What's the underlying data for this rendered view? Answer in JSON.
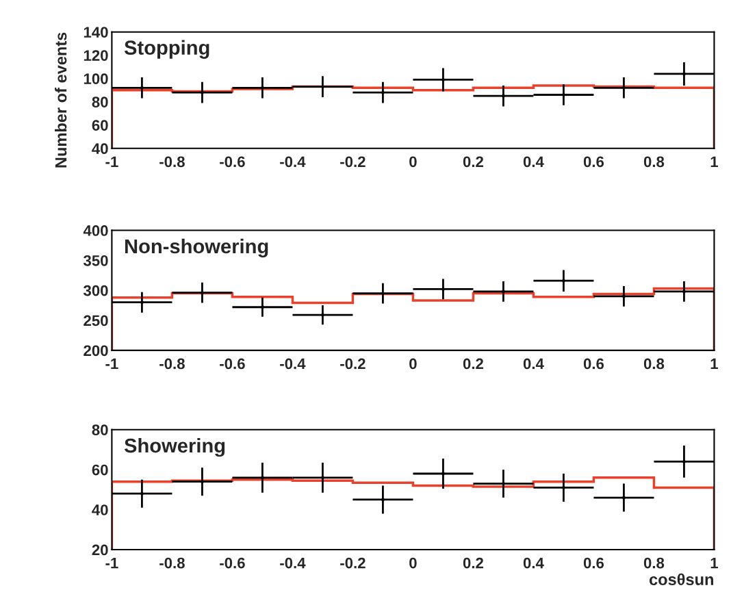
{
  "chart_data": [
    {
      "type": "histogram",
      "title": "Stopping",
      "ylabel": "Number of events",
      "bins": [
        -1,
        -0.8,
        -0.6,
        -0.4,
        -0.2,
        0,
        0.2,
        0.4,
        0.6,
        0.8,
        1
      ],
      "xlim": [
        -1,
        1
      ],
      "ylim": [
        40,
        140
      ],
      "xticks": [
        -1,
        -0.8,
        -0.6,
        -0.4,
        -0.2,
        0,
        0.2,
        0.4,
        0.6,
        0.8,
        1
      ],
      "yticks": [
        40,
        60,
        80,
        100,
        120,
        140
      ],
      "grid": false,
      "legend": false,
      "series": [
        {
          "color": "#e8412c",
          "values": [
            90,
            89,
            91,
            93,
            92,
            90,
            92,
            94,
            93,
            92
          ]
        },
        {
          "type": "scatter",
          "color": "#000000",
          "x": [
            -0.9,
            -0.7,
            -0.5,
            -0.3,
            -0.1,
            0.1,
            0.3,
            0.5,
            0.7,
            0.9
          ],
          "values": [
            92,
            88,
            92,
            93,
            88,
            99,
            85,
            86,
            92,
            104
          ],
          "errors": [
            9,
            9,
            9,
            9,
            9,
            10,
            9,
            9,
            9,
            10
          ],
          "xerrors": [
            0.1,
            0.1,
            0.1,
            0.1,
            0.1,
            0.1,
            0.1,
            0.1,
            0.1,
            0.1
          ]
        }
      ]
    },
    {
      "type": "histogram",
      "title": "Non-showering",
      "bins": [
        -1,
        -0.8,
        -0.6,
        -0.4,
        -0.2,
        0,
        0.2,
        0.4,
        0.6,
        0.8,
        1
      ],
      "xlim": [
        -1,
        1
      ],
      "ylim": [
        200,
        400
      ],
      "xticks": [
        -1,
        -0.8,
        -0.6,
        -0.4,
        -0.2,
        0,
        0.2,
        0.4,
        0.6,
        0.8,
        1
      ],
      "yticks": [
        200,
        250,
        300,
        350,
        400
      ],
      "grid": false,
      "legend": false,
      "series": [
        {
          "color": "#e8412c",
          "values": [
            288,
            295,
            289,
            279,
            294,
            283,
            295,
            289,
            294,
            303
          ]
        },
        {
          "type": "scatter",
          "color": "#000000",
          "x": [
            -0.9,
            -0.7,
            -0.5,
            -0.3,
            -0.1,
            0.1,
            0.3,
            0.5,
            0.7,
            0.9
          ],
          "values": [
            280,
            296,
            272,
            259,
            295,
            302,
            298,
            316,
            290,
            298
          ],
          "errors": [
            17,
            17,
            16,
            16,
            17,
            17,
            17,
            18,
            17,
            17
          ],
          "xerrors": [
            0.1,
            0.1,
            0.1,
            0.1,
            0.1,
            0.1,
            0.1,
            0.1,
            0.1,
            0.1
          ]
        }
      ]
    },
    {
      "type": "histogram",
      "title": "Showering",
      "xlabel": "cosθsun",
      "bins": [
        -1,
        -0.8,
        -0.6,
        -0.4,
        -0.2,
        0,
        0.2,
        0.4,
        0.6,
        0.8,
        1
      ],
      "xlim": [
        -1,
        1
      ],
      "ylim": [
        20,
        80
      ],
      "xticks": [
        -1,
        -0.8,
        -0.6,
        -0.4,
        -0.2,
        0,
        0.2,
        0.4,
        0.6,
        0.8,
        1
      ],
      "yticks": [
        20,
        40,
        60,
        80
      ],
      "grid": false,
      "legend": false,
      "series": [
        {
          "color": "#e8412c",
          "values": [
            54,
            54.5,
            55,
            54.5,
            53.5,
            52,
            51.5,
            54,
            56,
            51
          ]
        },
        {
          "type": "scatter",
          "color": "#000000",
          "x": [
            -0.9,
            -0.7,
            -0.5,
            -0.3,
            -0.1,
            0.1,
            0.3,
            0.5,
            0.7,
            0.9
          ],
          "values": [
            48,
            54,
            56,
            56,
            45,
            58,
            53,
            51,
            46,
            64
          ],
          "errors": [
            7,
            7,
            7.5,
            7.5,
            7,
            7.5,
            7,
            7,
            7,
            8
          ],
          "xerrors": [
            0.1,
            0.1,
            0.1,
            0.1,
            0.1,
            0.1,
            0.1,
            0.1,
            0.1,
            0.1
          ]
        }
      ]
    }
  ]
}
